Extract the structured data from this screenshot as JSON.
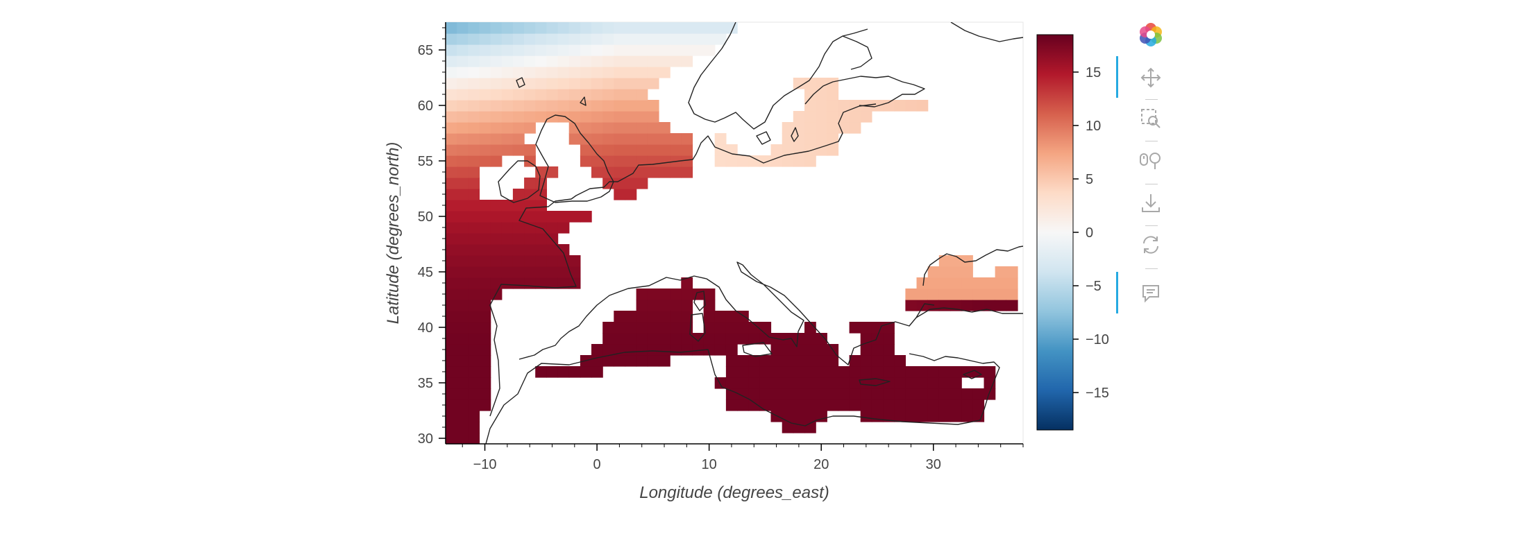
{
  "chart_data": {
    "type": "heatmap",
    "title": "",
    "xlabel": "Longitude (degrees_east)",
    "ylabel": "Latitude (degrees_north)",
    "xlim": [
      -13.5,
      38
    ],
    "ylim": [
      29.5,
      67.5
    ],
    "x_ticks": [
      -10,
      0,
      10,
      20,
      30
    ],
    "y_ticks": [
      30,
      35,
      40,
      45,
      50,
      55,
      60,
      65
    ],
    "grid": false,
    "colorbar": {
      "colormap": "RdBu_r",
      "range": [
        -18.5,
        18.5
      ],
      "ticks": [
        15,
        10,
        5,
        0,
        -5,
        -10,
        -15
      ],
      "tick_labels": [
        "15",
        "10",
        "5",
        "0",
        "−5",
        "−10",
        "−15"
      ],
      "placement": "right"
    },
    "cells": {
      "lon_step": 1,
      "lat_step": 1,
      "value_model": "approximately 17 - 0.0004*|lat-33|^3 over sea cells, lower toward the north-west",
      "regions": [
        {
          "name": "",
          "lon": [
            -13.5,
            9
          ],
          "lat": [
            51,
            67.5
          ],
          "approx_value": 7
        },
        {
          "name": "",
          "lon": [
            -13.5,
            -2
          ],
          "lat": [
            43,
            51
          ],
          "approx_value": 11
        },
        {
          "name": "",
          "lon": [
            -13.5,
            -8
          ],
          "lat": [
            29.5,
            43
          ],
          "approx_value": 16
        },
        {
          "name": "",
          "lon": [
            -1,
            13
          ],
          "lat": [
            36.5,
            43
          ],
          "approx_value": 16
        },
        {
          "name": "",
          "lon": [
            12,
            36
          ],
          "lat": [
            31,
            41
          ],
          "approx_value": 17
        },
        {
          "name": "",
          "lon": [
            9,
            30
          ],
          "lat": [
            53,
            62
          ],
          "approx_value": 4
        },
        {
          "name": "",
          "lon": [
            28,
            38
          ],
          "lat": [
            41,
            47
          ],
          "approx_value": 8
        }
      ]
    }
  },
  "toolbar": {
    "logo": "bokeh-logo-icon",
    "tools": [
      {
        "icon": "pan-icon",
        "active": true
      },
      {
        "icon": "box-zoom-icon",
        "active": false
      },
      {
        "icon": "wheel-zoom-icon",
        "active": false
      },
      {
        "icon": "save-icon",
        "active": false
      },
      {
        "icon": "reset-icon",
        "active": false
      },
      {
        "icon": "hover-icon",
        "active": true
      }
    ],
    "accent_color": "#26aae1"
  }
}
